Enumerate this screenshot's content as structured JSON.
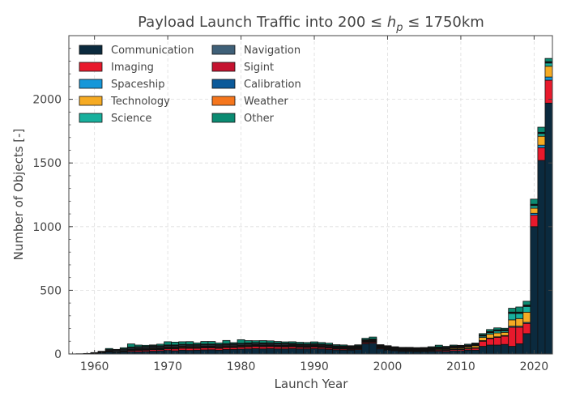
{
  "chart_data": {
    "type": "bar",
    "stacked": true,
    "title_main": "Payload Launch Traffic into 200 ",
    "title_cond_1": " ≤ ",
    "title_var": "h",
    "title_sub": "p",
    "title_cond_2": " ≤ ",
    "title_tail": " 1750km",
    "xlabel": "Launch Year",
    "ylabel": "Number of Objects [-]",
    "xlim": [
      1956.5,
      2022.5
    ],
    "ylim": [
      0,
      2500
    ],
    "xticks": [
      1960,
      1970,
      1980,
      1990,
      2000,
      2010,
      2020
    ],
    "yticks": [
      0,
      500,
      1000,
      1500,
      2000
    ],
    "grid": true,
    "legend_position": "top-left",
    "x": [
      1957,
      1958,
      1959,
      1960,
      1961,
      1962,
      1963,
      1964,
      1965,
      1966,
      1967,
      1968,
      1969,
      1970,
      1971,
      1972,
      1973,
      1974,
      1975,
      1976,
      1977,
      1978,
      1979,
      1980,
      1981,
      1982,
      1983,
      1984,
      1985,
      1986,
      1987,
      1988,
      1989,
      1990,
      1991,
      1992,
      1993,
      1994,
      1995,
      1996,
      1997,
      1998,
      1999,
      2000,
      2001,
      2002,
      2003,
      2004,
      2005,
      2006,
      2007,
      2008,
      2009,
      2010,
      2011,
      2012,
      2013,
      2014,
      2015,
      2016,
      2017,
      2018,
      2019,
      2020,
      2021,
      2022
    ],
    "series": [
      {
        "name": "Communication",
        "color": "#0b2a3e",
        "values": [
          1,
          2,
          4,
          6,
          10,
          15,
          12,
          15,
          20,
          18,
          20,
          22,
          25,
          28,
          25,
          30,
          28,
          30,
          32,
          33,
          30,
          35,
          35,
          38,
          40,
          42,
          40,
          42,
          40,
          40,
          42,
          40,
          40,
          42,
          40,
          35,
          32,
          30,
          30,
          35,
          80,
          85,
          40,
          30,
          25,
          20,
          20,
          18,
          18,
          20,
          22,
          20,
          25,
          25,
          30,
          30,
          60,
          70,
          70,
          75,
          60,
          80,
          160,
          1000,
          1520,
          1970
        ]
      },
      {
        "name": "Imaging",
        "color": "#e8192c",
        "values": [
          0,
          0,
          0,
          0,
          0,
          0,
          0,
          4,
          8,
          10,
          10,
          12,
          10,
          12,
          15,
          15,
          16,
          14,
          16,
          15,
          14,
          15,
          15,
          15,
          16,
          17,
          17,
          16,
          16,
          15,
          14,
          12,
          10,
          12,
          10,
          10,
          8,
          8,
          6,
          6,
          8,
          8,
          6,
          5,
          5,
          5,
          5,
          5,
          5,
          6,
          8,
          8,
          10,
          10,
          10,
          15,
          40,
          50,
          60,
          65,
          150,
          130,
          80,
          90,
          100,
          180
        ]
      },
      {
        "name": "Spaceship",
        "color": "#1597d9",
        "values": [
          0,
          0,
          0,
          1,
          2,
          3,
          3,
          3,
          4,
          5,
          5,
          5,
          5,
          5,
          5,
          5,
          5,
          5,
          5,
          5,
          5,
          5,
          5,
          5,
          5,
          5,
          5,
          5,
          5,
          5,
          5,
          5,
          5,
          5,
          5,
          5,
          5,
          5,
          5,
          5,
          5,
          5,
          5,
          5,
          5,
          5,
          5,
          5,
          5,
          5,
          5,
          5,
          5,
          5,
          5,
          5,
          5,
          5,
          5,
          5,
          8,
          8,
          8,
          15,
          20,
          25
        ]
      },
      {
        "name": "Technology",
        "color": "#f6ab23",
        "values": [
          0,
          0,
          0,
          0,
          2,
          3,
          3,
          3,
          4,
          5,
          5,
          6,
          5,
          6,
          6,
          6,
          6,
          6,
          5,
          5,
          6,
          6,
          6,
          6,
          6,
          5,
          5,
          5,
          5,
          5,
          5,
          5,
          5,
          5,
          5,
          5,
          5,
          5,
          5,
          5,
          5,
          5,
          5,
          5,
          4,
          4,
          4,
          4,
          5,
          5,
          6,
          6,
          8,
          8,
          10,
          15,
          25,
          30,
          30,
          25,
          50,
          60,
          80,
          40,
          70,
          85
        ]
      },
      {
        "name": "Science",
        "color": "#18b09d",
        "values": [
          0,
          0,
          0,
          2,
          2,
          3,
          3,
          3,
          4,
          5,
          5,
          5,
          5,
          5,
          5,
          5,
          5,
          5,
          5,
          5,
          5,
          5,
          5,
          5,
          5,
          5,
          5,
          5,
          5,
          5,
          5,
          5,
          5,
          5,
          5,
          5,
          5,
          5,
          5,
          5,
          5,
          5,
          5,
          5,
          5,
          5,
          5,
          5,
          5,
          5,
          5,
          5,
          5,
          5,
          5,
          5,
          10,
          12,
          15,
          12,
          50,
          40,
          45,
          20,
          20,
          25
        ]
      },
      {
        "name": "Navigation",
        "color": "#3f6078",
        "values": [
          0,
          0,
          0,
          1,
          2,
          6,
          8,
          8,
          8,
          8,
          8,
          8,
          8,
          8,
          8,
          8,
          8,
          8,
          8,
          8,
          8,
          8,
          8,
          8,
          8,
          8,
          8,
          8,
          8,
          8,
          6,
          6,
          6,
          6,
          6,
          6,
          4,
          4,
          4,
          4,
          4,
          4,
          4,
          4,
          4,
          4,
          4,
          4,
          4,
          4,
          4,
          4,
          4,
          4,
          4,
          4,
          4,
          4,
          4,
          4,
          5,
          5,
          5,
          5,
          5,
          5
        ]
      },
      {
        "name": "Sigint",
        "color": "#c51330",
        "values": [
          0,
          0,
          0,
          0,
          1,
          3,
          3,
          3,
          3,
          4,
          4,
          4,
          4,
          4,
          4,
          4,
          4,
          4,
          4,
          4,
          4,
          4,
          4,
          4,
          4,
          4,
          4,
          4,
          4,
          4,
          4,
          4,
          4,
          4,
          4,
          4,
          3,
          3,
          3,
          3,
          3,
          3,
          3,
          3,
          3,
          3,
          3,
          3,
          3,
          3,
          3,
          3,
          3,
          3,
          3,
          3,
          3,
          3,
          3,
          3,
          3,
          3,
          3,
          3,
          3,
          3
        ]
      },
      {
        "name": "Calibration",
        "color": "#0c5a9a",
        "values": [
          0,
          0,
          0,
          0,
          0,
          0,
          0,
          0,
          0,
          0,
          0,
          0,
          0,
          0,
          0,
          0,
          0,
          0,
          0,
          0,
          0,
          0,
          0,
          0,
          0,
          0,
          0,
          0,
          0,
          0,
          0,
          0,
          0,
          0,
          0,
          0,
          0,
          0,
          0,
          0,
          0,
          0,
          0,
          0,
          0,
          0,
          0,
          0,
          0,
          0,
          0,
          0,
          0,
          0,
          0,
          0,
          0,
          0,
          0,
          0,
          0,
          0,
          0,
          0,
          0,
          0
        ]
      },
      {
        "name": "Weather",
        "color": "#f5761d",
        "values": [
          0,
          0,
          0,
          1,
          1,
          2,
          2,
          2,
          3,
          3,
          3,
          3,
          3,
          3,
          3,
          3,
          3,
          3,
          3,
          3,
          3,
          3,
          3,
          3,
          3,
          3,
          3,
          3,
          3,
          3,
          3,
          3,
          3,
          3,
          3,
          3,
          3,
          3,
          3,
          3,
          3,
          3,
          3,
          3,
          3,
          3,
          3,
          3,
          3,
          3,
          3,
          3,
          3,
          3,
          3,
          3,
          3,
          3,
          3,
          3,
          3,
          3,
          3,
          3,
          3,
          3
        ]
      },
      {
        "name": "Other",
        "color": "#0b8b72",
        "values": [
          0,
          0,
          0,
          0,
          1,
          8,
          2,
          8,
          25,
          12,
          8,
          6,
          12,
          25,
          22,
          20,
          22,
          12,
          20,
          20,
          12,
          25,
          8,
          28,
          18,
          15,
          18,
          15,
          12,
          10,
          12,
          12,
          12,
          13,
          12,
          12,
          8,
          8,
          4,
          6,
          10,
          15,
          2,
          5,
          3,
          3,
          3,
          3,
          3,
          6,
          13,
          6,
          7,
          5,
          7,
          6,
          10,
          15,
          15,
          10,
          30,
          40,
          30,
          40,
          40,
          25
        ]
      }
    ]
  }
}
